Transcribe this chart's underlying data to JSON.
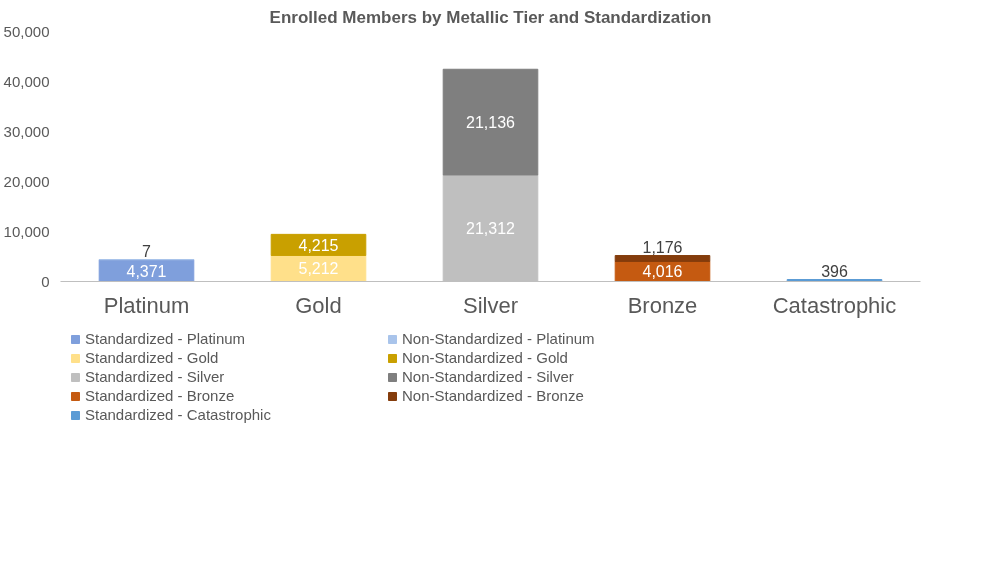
{
  "chart_data": {
    "type": "bar",
    "stacked": true,
    "title": "Enrolled Members by Metallic Tier and Standardization",
    "categories": [
      "Platinum",
      "Gold",
      "Silver",
      "Bronze",
      "Catastrophic"
    ],
    "series": [
      {
        "name": "Standardized - Platinum",
        "color": "#7f9fdc",
        "values": [
          4371,
          null,
          null,
          null,
          null
        ],
        "value_labels": [
          "4,371",
          null,
          null,
          null,
          null
        ]
      },
      {
        "name": "Non-Standardized - Platinum",
        "color": "#a9c4eb",
        "values": [
          7,
          null,
          null,
          null,
          null
        ],
        "value_labels": [
          "7",
          null,
          null,
          null,
          null
        ]
      },
      {
        "name": "Standardized - Gold",
        "color": "#ffe08a",
        "values": [
          null,
          5212,
          null,
          null,
          null
        ],
        "value_labels": [
          null,
          "5,212",
          null,
          null,
          null
        ]
      },
      {
        "name": "Non-Standardized - Gold",
        "color": "#c9a000",
        "values": [
          null,
          4215,
          null,
          null,
          null
        ],
        "value_labels": [
          null,
          "4,215",
          null,
          null,
          null
        ]
      },
      {
        "name": "Standardized - Silver",
        "color": "#bfbfbf",
        "values": [
          null,
          null,
          21312,
          null,
          null
        ],
        "value_labels": [
          null,
          null,
          "21,312",
          null,
          null
        ]
      },
      {
        "name": "Non-Standardized - Silver",
        "color": "#7f7f7f",
        "values": [
          null,
          null,
          21136,
          null,
          null
        ],
        "value_labels": [
          null,
          null,
          "21,136",
          null,
          null
        ]
      },
      {
        "name": "Standardized - Bronze",
        "color": "#c55a11",
        "values": [
          null,
          null,
          null,
          4016,
          null
        ],
        "value_labels": [
          null,
          null,
          null,
          "4,016",
          null
        ]
      },
      {
        "name": "Non-Standardized - Bronze",
        "color": "#843c0c",
        "values": [
          null,
          null,
          null,
          1176,
          null
        ],
        "value_labels": [
          null,
          null,
          null,
          "1,176",
          null
        ]
      },
      {
        "name": "Standardized - Catastrophic",
        "color": "#5b9bd5",
        "values": [
          null,
          null,
          null,
          null,
          396
        ],
        "value_labels": [
          null,
          null,
          null,
          null,
          "396"
        ]
      }
    ],
    "ylim": [
      0,
      50000
    ],
    "yticks": [
      {
        "value": 0,
        "label": "0"
      },
      {
        "value": 10000,
        "label": "10,000"
      },
      {
        "value": 20000,
        "label": "20,000"
      },
      {
        "value": 30000,
        "label": "30,000"
      },
      {
        "value": 40000,
        "label": "40,000"
      },
      {
        "value": 50000,
        "label": "50,000"
      }
    ],
    "legend": "bottom"
  }
}
